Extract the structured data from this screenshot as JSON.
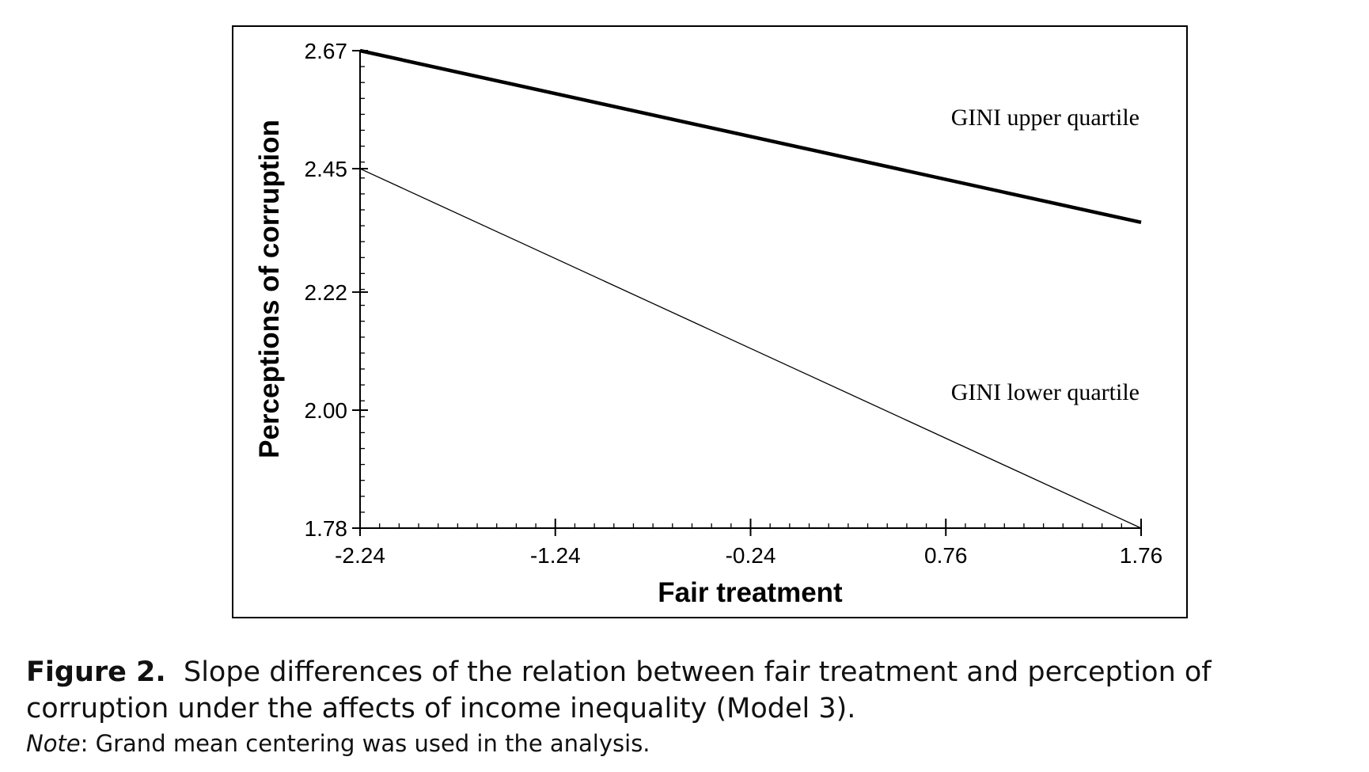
{
  "chart_data": {
    "type": "line",
    "xlabel": "Fair treatment",
    "ylabel": "Perceptions of corruption",
    "x_ticks": [
      "-2.24",
      "-1.24",
      "-0.24",
      "0.76",
      "1.76"
    ],
    "y_ticks": [
      "2.67",
      "2.45",
      "2.22",
      "2.00",
      "1.78"
    ],
    "xlim": [
      -2.24,
      1.76
    ],
    "ylim": [
      1.78,
      2.67
    ],
    "grid": false,
    "series": [
      {
        "name": "GINI upper quartile",
        "x": [
          -2.24,
          1.76
        ],
        "y": [
          2.67,
          2.35
        ]
      },
      {
        "name": "GINI lower quartile",
        "x": [
          -2.24,
          1.76
        ],
        "y": [
          2.45,
          1.78
        ]
      }
    ]
  },
  "caption": {
    "label": "Figure 2.",
    "text": "Slope differences of the relation between fair treatment and perception of corruption under the affects of income inequality (Model 3)."
  },
  "note": {
    "label": "Note",
    "text": ": Grand mean centering was used in the analysis."
  }
}
